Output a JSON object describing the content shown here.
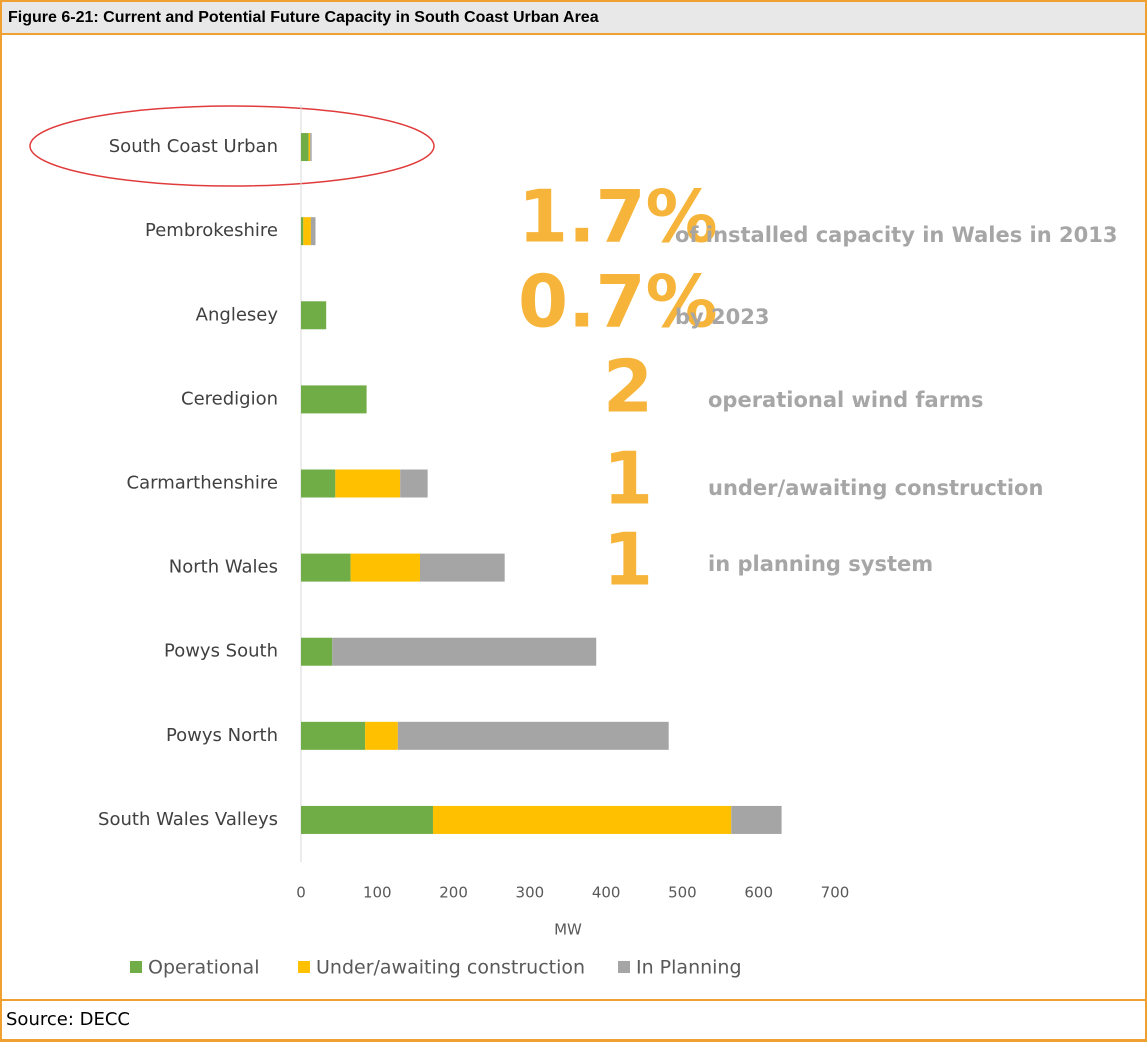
{
  "chart_data": {
    "type": "stacked-barh",
    "title": "Figure 6-21: Current and Potential Future Capacity in South Coast Urban Area",
    "categories": [
      "South Coast Urban",
      "Pembrokeshire",
      "Anglesey",
      "Ceredigion",
      "Carmarthenshire",
      "North Wales",
      "Powys South",
      "Powys North",
      "South Wales Valleys"
    ],
    "series": [
      {
        "name": "Operational",
        "color": "#70ad47",
        "values": [
          10,
          3,
          33,
          86,
          45,
          65,
          41,
          84,
          173
        ]
      },
      {
        "name": "Under/awaiting construction",
        "color": "#ffc000",
        "values": [
          2,
          10,
          0,
          0,
          85,
          91,
          0,
          43,
          391
        ]
      },
      {
        "name": "In Planning",
        "color": "#a5a5a5",
        "values": [
          2,
          6,
          0,
          0,
          36,
          111,
          346,
          355,
          66
        ]
      }
    ],
    "xlim": [
      0,
      700
    ],
    "xticks": [
      0,
      100,
      200,
      300,
      400,
      500,
      600,
      700
    ],
    "xlabel": "MW",
    "annotations": [
      {
        "big": "1.7%",
        "text": "of installed capacity in Wales in 2013"
      },
      {
        "big": "0.7%",
        "text": "by 2023"
      },
      {
        "big": "2",
        "text": "operational wind farms"
      },
      {
        "big": "1",
        "text": "under/awaiting construction"
      },
      {
        "big": "1",
        "text": "in planning system"
      }
    ],
    "legend": "bottom",
    "source": "Source: DECC"
  }
}
